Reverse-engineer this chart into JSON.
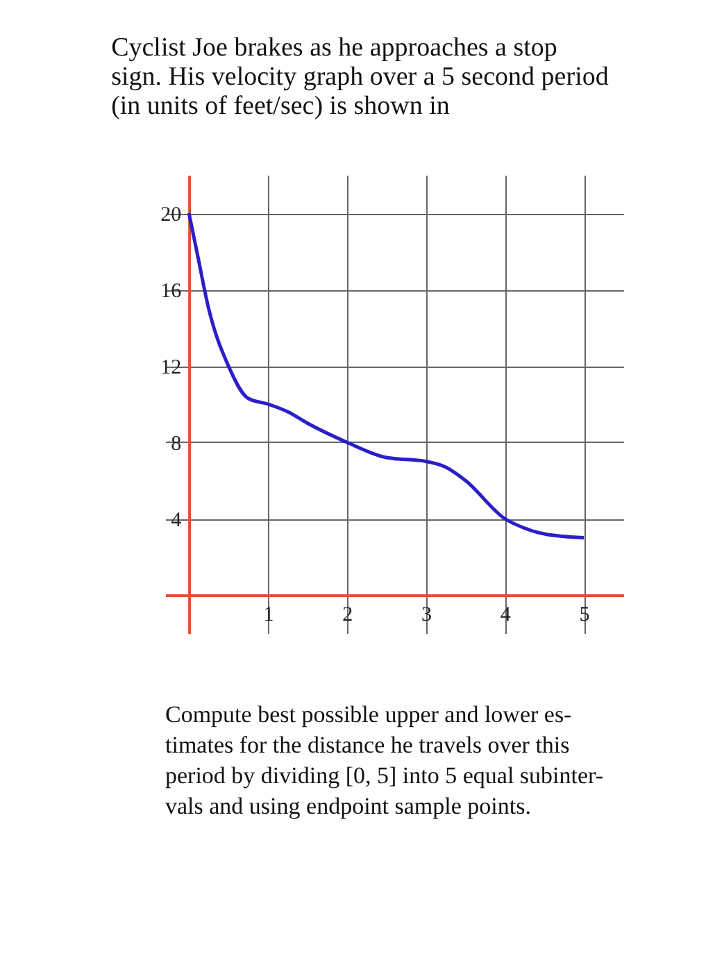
{
  "chart_data": {
    "type": "line",
    "title": "Cyclist Joe brakes as he approaches a stop\nsign. His velocity graph over a 5 second period\n(in units of feet/sec) is shown in",
    "annotations": [
      "Compute best possible upper and lower es-\ntimates for the distance he travels over this\nperiod by dividing [0, 5] into 5 equal subinter-\nvals and using endpoint sample points."
    ],
    "series": [
      {
        "color": "#2a1fc8",
        "x": [
          0,
          0.1,
          0.25,
          0.5,
          0.75,
          1,
          1.25,
          1.5,
          2,
          2.5,
          3,
          3.25,
          3.5,
          4,
          4.25,
          4.5,
          5
        ],
        "values": [
          20,
          18,
          15,
          12,
          10.3,
          10,
          9.6,
          9,
          8,
          7.2,
          7,
          6.7,
          6,
          4,
          3.5,
          3.2,
          3
        ]
      }
    ],
    "xlim": [
      -0.3,
      5.5
    ],
    "ylim": [
      -2,
      22
    ],
    "xticks": [
      1,
      2,
      3,
      4,
      5
    ],
    "yticks": [
      4,
      8,
      12,
      16,
      20
    ],
    "grid": true,
    "marker": "none",
    "line_style": "solid"
  }
}
